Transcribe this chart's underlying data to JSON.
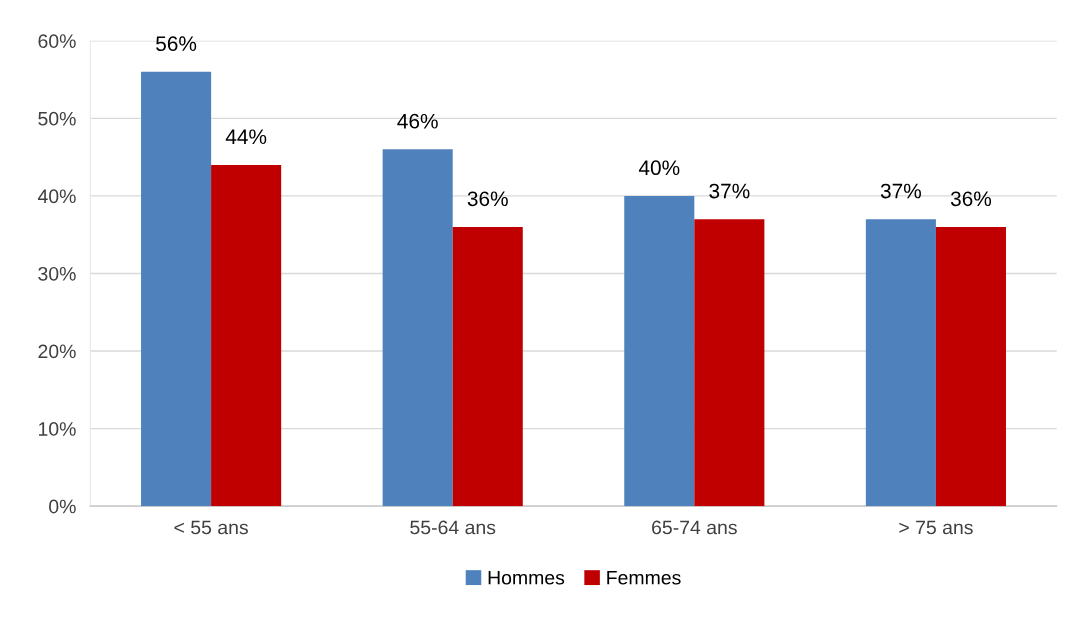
{
  "chart_data": {
    "type": "bar",
    "categories": [
      "< 55 ans",
      "55-64 ans",
      "65-74 ans",
      "> 75 ans"
    ],
    "series": [
      {
        "name": "Hommes",
        "color": "#4f81bd",
        "values": [
          56,
          46,
          40,
          37
        ],
        "value_labels": [
          "56%",
          "46%",
          "40%",
          "37%"
        ]
      },
      {
        "name": "Femmes",
        "color": "#c00000",
        "values": [
          44,
          36,
          37,
          36
        ],
        "value_labels": [
          "44%",
          "36%",
          "37%",
          "36%"
        ]
      }
    ],
    "ylim": [
      0,
      60
    ],
    "yticks": [
      {
        "value": 0,
        "label": "0%"
      },
      {
        "value": 10,
        "label": "10%"
      },
      {
        "value": 20,
        "label": "20%"
      },
      {
        "value": 30,
        "label": "30%"
      },
      {
        "value": 40,
        "label": "40%"
      },
      {
        "value": 50,
        "label": "50%"
      },
      {
        "value": 60,
        "label": "60%"
      }
    ],
    "grid": "y",
    "legend": "bottom"
  }
}
